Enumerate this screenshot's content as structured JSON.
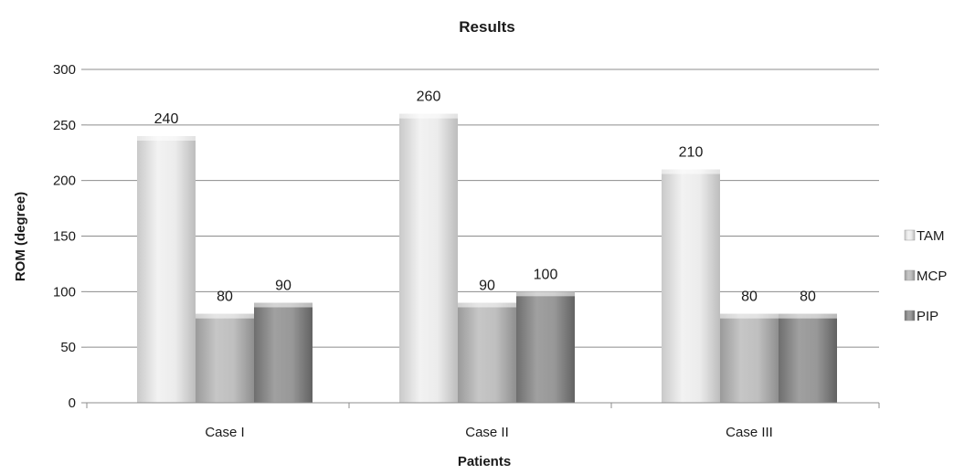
{
  "chart_data": {
    "type": "bar",
    "title": "Results",
    "xlabel": "Patients",
    "ylabel": "ROM (degree)",
    "categories": [
      "Case I",
      "Case II",
      "Case III"
    ],
    "ylim": [
      0,
      300
    ],
    "yticks": [
      0,
      50,
      100,
      150,
      200,
      250,
      300
    ],
    "grid": true,
    "legend_position": "right",
    "series": [
      {
        "name": "TAM",
        "values": [
          240,
          260,
          210
        ],
        "color": "#e2e2e2"
      },
      {
        "name": "MCP",
        "values": [
          80,
          90,
          80
        ],
        "color": "#b3b3b3"
      },
      {
        "name": "PIP",
        "values": [
          90,
          100,
          80
        ],
        "color": "#8e8e8e"
      }
    ]
  }
}
